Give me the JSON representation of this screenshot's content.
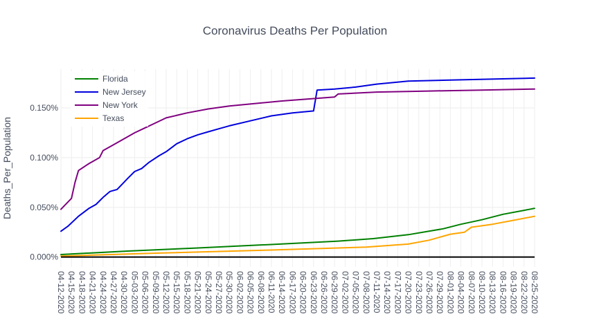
{
  "chart_data": {
    "type": "line",
    "title": "Coronavirus Deaths Per Population",
    "xlabel": "",
    "ylabel": "Deaths_Per_Population",
    "ylim": [
      -0.0001,
      0.00189
    ],
    "yticks": [
      0,
      0.0005,
      0.001,
      0.0015
    ],
    "ytick_labels": [
      "0.000%",
      "0.050%",
      "0.100%",
      "0.150%"
    ],
    "xticks": [
      "04-12-2020",
      "04-15-2020",
      "04-18-2020",
      "04-21-2020",
      "04-24-2020",
      "04-27-2020",
      "04-30-2020",
      "05-03-2020",
      "05-06-2020",
      "05-09-2020",
      "05-12-2020",
      "05-15-2020",
      "05-18-2020",
      "05-21-2020",
      "05-24-2020",
      "05-27-2020",
      "05-30-2020",
      "06-02-2020",
      "06-05-2020",
      "06-08-2020",
      "06-11-2020",
      "06-14-2020",
      "06-17-2020",
      "06-20-2020",
      "06-23-2020",
      "06-26-2020",
      "06-29-2020",
      "07-02-2020",
      "07-05-2020",
      "07-08-2020",
      "07-11-2020",
      "07-14-2020",
      "07-17-2020",
      "07-20-2020",
      "07-23-2020",
      "07-26-2020",
      "07-29-2020",
      "08-01-2020",
      "08-04-2020",
      "08-07-2020",
      "08-10-2020",
      "08-13-2020",
      "08-16-2020",
      "08-19-2020",
      "08-22-2020",
      "08-25-2020"
    ],
    "grid": true,
    "legend_position": "top-left",
    "series": [
      {
        "name": "Florida",
        "color": "#008000",
        "points": [
          [
            "04-12-2020",
            2.5e-05
          ],
          [
            "05-01-2020",
            6e-05
          ],
          [
            "05-20-2020",
            9e-05
          ],
          [
            "06-10-2020",
            0.000125
          ],
          [
            "06-30-2020",
            0.00016
          ],
          [
            "07-10-2020",
            0.000185
          ],
          [
            "07-20-2020",
            0.000225
          ],
          [
            "07-30-2020",
            0.000285
          ],
          [
            "08-04-2020",
            0.00033
          ],
          [
            "08-10-2020",
            0.000375
          ],
          [
            "08-16-2020",
            0.00043
          ],
          [
            "08-22-2020",
            0.00047
          ],
          [
            "08-25-2020",
            0.00049
          ]
        ]
      },
      {
        "name": "New Jersey",
        "color": "#0000dd",
        "points": [
          [
            "04-12-2020",
            0.00026
          ],
          [
            "04-14-2020",
            0.00031
          ],
          [
            "04-17-2020",
            0.00041
          ],
          [
            "04-20-2020",
            0.00049
          ],
          [
            "04-22-2020",
            0.00053
          ],
          [
            "04-24-2020",
            0.0006
          ],
          [
            "04-26-2020",
            0.00066
          ],
          [
            "04-28-2020",
            0.00068
          ],
          [
            "05-01-2020",
            0.00079
          ],
          [
            "05-03-2020",
            0.00086
          ],
          [
            "05-05-2020",
            0.00089
          ],
          [
            "05-07-2020",
            0.00095
          ],
          [
            "05-10-2020",
            0.00102
          ],
          [
            "05-12-2020",
            0.00106
          ],
          [
            "05-15-2020",
            0.00114
          ],
          [
            "05-18-2020",
            0.00119
          ],
          [
            "05-21-2020",
            0.00123
          ],
          [
            "05-24-2020",
            0.00126
          ],
          [
            "05-27-2020",
            0.00129
          ],
          [
            "05-30-2020",
            0.00132
          ],
          [
            "06-05-2020",
            0.00137
          ],
          [
            "06-11-2020",
            0.00142
          ],
          [
            "06-17-2020",
            0.00145
          ],
          [
            "06-23-2020",
            0.00147
          ],
          [
            "06-24-2020",
            0.00168
          ],
          [
            "06-29-2020",
            0.00169
          ],
          [
            "07-05-2020",
            0.00171
          ],
          [
            "07-11-2020",
            0.00174
          ],
          [
            "07-20-2020",
            0.00177
          ],
          [
            "08-01-2020",
            0.00178
          ],
          [
            "08-25-2020",
            0.0018
          ]
        ]
      },
      {
        "name": "New York",
        "color": "#800080",
        "points": [
          [
            "04-12-2020",
            0.00048
          ],
          [
            "04-15-2020",
            0.00059
          ],
          [
            "04-16-2020",
            0.00075
          ],
          [
            "04-17-2020",
            0.00087
          ],
          [
            "04-20-2020",
            0.00094
          ],
          [
            "04-23-2020",
            0.001
          ],
          [
            "04-24-2020",
            0.00107
          ],
          [
            "04-27-2020",
            0.00113
          ],
          [
            "04-30-2020",
            0.00119
          ],
          [
            "05-03-2020",
            0.00125
          ],
          [
            "05-06-2020",
            0.0013
          ],
          [
            "05-09-2020",
            0.00135
          ],
          [
            "05-12-2020",
            0.0014
          ],
          [
            "05-18-2020",
            0.00145
          ],
          [
            "05-24-2020",
            0.00149
          ],
          [
            "05-30-2020",
            0.00152
          ],
          [
            "06-08-2020",
            0.00155
          ],
          [
            "06-14-2020",
            0.00157
          ],
          [
            "06-29-2020",
            0.00161
          ],
          [
            "06-30-2020",
            0.00164
          ],
          [
            "07-11-2020",
            0.00166
          ],
          [
            "07-26-2020",
            0.00167
          ],
          [
            "08-10-2020",
            0.00168
          ],
          [
            "08-25-2020",
            0.00169
          ]
        ]
      },
      {
        "name": "Texas",
        "color": "#ffa500",
        "points": [
          [
            "04-12-2020",
            1e-05
          ],
          [
            "05-10-2020",
            4e-05
          ],
          [
            "06-10-2020",
            7e-05
          ],
          [
            "07-08-2020",
            0.0001
          ],
          [
            "07-20-2020",
            0.00013
          ],
          [
            "07-26-2020",
            0.00017
          ],
          [
            "07-28-2020",
            0.00019
          ],
          [
            "08-01-2020",
            0.00023
          ],
          [
            "08-05-2020",
            0.00025
          ],
          [
            "08-07-2020",
            0.0003
          ],
          [
            "08-13-2020",
            0.00033
          ],
          [
            "08-19-2020",
            0.00037
          ],
          [
            "08-25-2020",
            0.00041
          ]
        ]
      }
    ]
  }
}
